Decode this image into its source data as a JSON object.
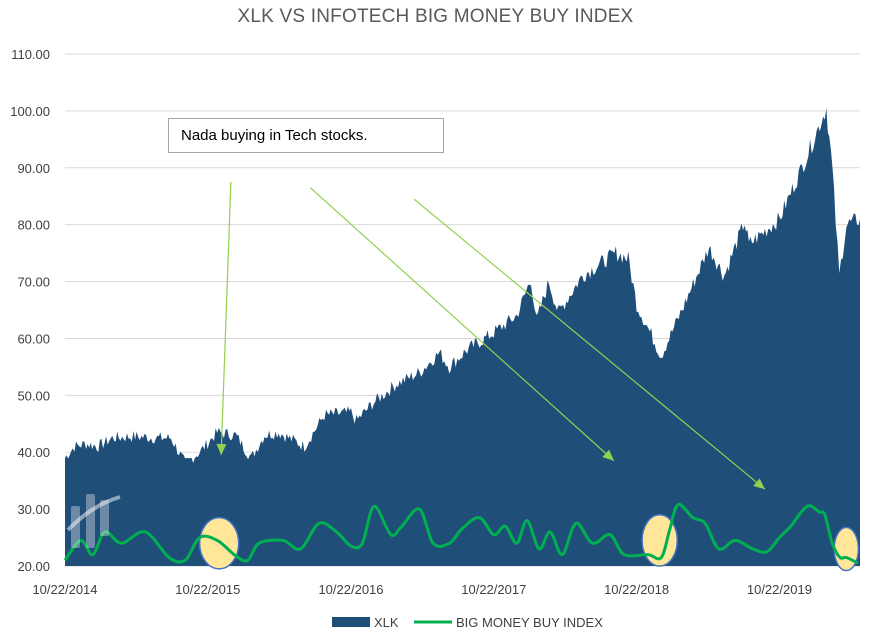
{
  "chart_data": {
    "type": "area",
    "title": "XLK VS INFOTECH BIG MONEY BUY INDEX",
    "xlabel": "",
    "ylabel": "",
    "ylim": [
      20,
      110
    ],
    "yticks": [
      "20.00",
      "30.00",
      "40.00",
      "50.00",
      "60.00",
      "70.00",
      "80.00",
      "90.00",
      "100.00",
      "110.00"
    ],
    "xlim": [
      "2014-10-22",
      "2020-05-15"
    ],
    "xticks": [
      "10/22/2014",
      "10/22/2015",
      "10/22/2016",
      "10/22/2017",
      "10/22/2018",
      "10/22/2019"
    ],
    "grid": true,
    "legend_position": "bottom",
    "series": [
      {
        "name": "XLK",
        "style": "area",
        "color": "#1f4e79",
        "points": [
          [
            "2014-10-22",
            39
          ],
          [
            "2014-11-15",
            41
          ],
          [
            "2014-12-15",
            41.5
          ],
          [
            "2015-01-15",
            41
          ],
          [
            "2015-02-20",
            42.5
          ],
          [
            "2015-04-15",
            42.8
          ],
          [
            "2015-06-15",
            42.5
          ],
          [
            "2015-07-20",
            42.5
          ],
          [
            "2015-08-25",
            38
          ],
          [
            "2015-10-01",
            40
          ],
          [
            "2015-11-15",
            43.5
          ],
          [
            "2016-01-01",
            43
          ],
          [
            "2016-02-10",
            39
          ],
          [
            "2016-03-15",
            43
          ],
          [
            "2016-04-20",
            43.5
          ],
          [
            "2016-06-25",
            41
          ],
          [
            "2016-08-15",
            46.5
          ],
          [
            "2016-10-22",
            47
          ],
          [
            "2016-11-05",
            45.5
          ],
          [
            "2016-12-15",
            48.5
          ],
          [
            "2017-02-15",
            52
          ],
          [
            "2017-04-15",
            54
          ],
          [
            "2017-06-05",
            57.5
          ],
          [
            "2017-06-30",
            55
          ],
          [
            "2017-08-15",
            58
          ],
          [
            "2017-10-22",
            61
          ],
          [
            "2017-12-20",
            64
          ],
          [
            "2018-01-25",
            70.5
          ],
          [
            "2018-02-08",
            63
          ],
          [
            "2018-03-12",
            70
          ],
          [
            "2018-04-05",
            64.5
          ],
          [
            "2018-06-05",
            71
          ],
          [
            "2018-08-30",
            75
          ],
          [
            "2018-10-01",
            74
          ],
          [
            "2018-10-22",
            66
          ],
          [
            "2018-12-24",
            57
          ],
          [
            "2019-02-15",
            65
          ],
          [
            "2019-04-25",
            76
          ],
          [
            "2019-06-03",
            71
          ],
          [
            "2019-07-25",
            80.5
          ],
          [
            "2019-08-05",
            76.5
          ],
          [
            "2019-10-22",
            81
          ],
          [
            "2019-12-31",
            92
          ],
          [
            "2020-02-19",
            100.5
          ],
          [
            "2020-03-05",
            90
          ],
          [
            "2020-03-23",
            71
          ],
          [
            "2020-04-10",
            80
          ],
          [
            "2020-05-15",
            81
          ]
        ]
      },
      {
        "name": "BIG MONEY BUY INDEX",
        "style": "line",
        "color": "#00b050",
        "points": [
          [
            "2014-10-22",
            21
          ],
          [
            "2014-12-01",
            24.5
          ],
          [
            "2015-01-01",
            22
          ],
          [
            "2015-02-01",
            26
          ],
          [
            "2015-03-15",
            24
          ],
          [
            "2015-05-15",
            26
          ],
          [
            "2015-07-15",
            21.5
          ],
          [
            "2015-08-25",
            21
          ],
          [
            "2015-10-01",
            25
          ],
          [
            "2015-11-15",
            24.5
          ],
          [
            "2016-01-01",
            21.8
          ],
          [
            "2016-02-01",
            21
          ],
          [
            "2016-03-01",
            24
          ],
          [
            "2016-05-01",
            24.5
          ],
          [
            "2016-06-15",
            23
          ],
          [
            "2016-08-01",
            27.5
          ],
          [
            "2016-09-15",
            26
          ],
          [
            "2016-10-22",
            23.5
          ],
          [
            "2016-11-20",
            24
          ],
          [
            "2016-12-20",
            30.5
          ],
          [
            "2017-02-01",
            25.5
          ],
          [
            "2017-03-01",
            27
          ],
          [
            "2017-04-15",
            30
          ],
          [
            "2017-05-20",
            24
          ],
          [
            "2017-07-01",
            24
          ],
          [
            "2017-08-01",
            26.5
          ],
          [
            "2017-09-15",
            28.5
          ],
          [
            "2017-10-22",
            25.5
          ],
          [
            "2017-11-20",
            27
          ],
          [
            "2017-12-20",
            24
          ],
          [
            "2018-01-15",
            28
          ],
          [
            "2018-02-15",
            23
          ],
          [
            "2018-03-15",
            26
          ],
          [
            "2018-04-15",
            22
          ],
          [
            "2018-05-20",
            27.5
          ],
          [
            "2018-07-01",
            24
          ],
          [
            "2018-08-15",
            25.5
          ],
          [
            "2018-09-20",
            22
          ],
          [
            "2018-11-20",
            22
          ],
          [
            "2018-12-24",
            21.5
          ],
          [
            "2019-01-15",
            26.5
          ],
          [
            "2019-02-05",
            30.8
          ],
          [
            "2019-03-15",
            28.5
          ],
          [
            "2019-04-15",
            27.5
          ],
          [
            "2019-05-20",
            23
          ],
          [
            "2019-07-01",
            24.5
          ],
          [
            "2019-08-15",
            23
          ],
          [
            "2019-09-20",
            22.5
          ],
          [
            "2019-10-22",
            25
          ],
          [
            "2019-11-20",
            27
          ],
          [
            "2020-01-01",
            30.5
          ],
          [
            "2020-02-01",
            29.5
          ],
          [
            "2020-02-15",
            29
          ],
          [
            "2020-03-05",
            24
          ],
          [
            "2020-03-25",
            21.5
          ],
          [
            "2020-04-10",
            21.5
          ],
          [
            "2020-05-10",
            20.5
          ]
        ]
      }
    ],
    "annotations": [
      {
        "type": "text",
        "text": "Nada buying in Tech stocks."
      },
      {
        "type": "arrow",
        "color": "#92d050",
        "from": [
          "2015-12-20",
          87.5
        ],
        "to": [
          "2015-11-25",
          39.5
        ]
      },
      {
        "type": "arrow",
        "color": "#92d050",
        "from": [
          "2016-07-10",
          86.5
        ],
        "to": [
          "2018-08-25",
          38.5
        ]
      },
      {
        "type": "arrow",
        "color": "#92d050",
        "from": [
          "2017-04-01",
          84.5
        ],
        "to": [
          "2019-09-15",
          33.5
        ]
      },
      {
        "type": "ellipse",
        "color": "#ffe699",
        "outline": "#4472c4",
        "center": [
          "2015-11-20",
          24
        ],
        "radius": [
          "2015-10-01",
          4.5
        ]
      },
      {
        "type": "ellipse",
        "color": "#ffe699",
        "outline": "#4472c4",
        "center": [
          "2018-12-20",
          24.5
        ],
        "radius": [
          "2018-11-05",
          4.5
        ]
      },
      {
        "type": "ellipse",
        "color": "#ffe699",
        "outline": "#4472c4",
        "center": [
          "2020-04-10",
          23
        ],
        "radius": [
          "2020-03-10",
          3.8
        ]
      }
    ]
  }
}
